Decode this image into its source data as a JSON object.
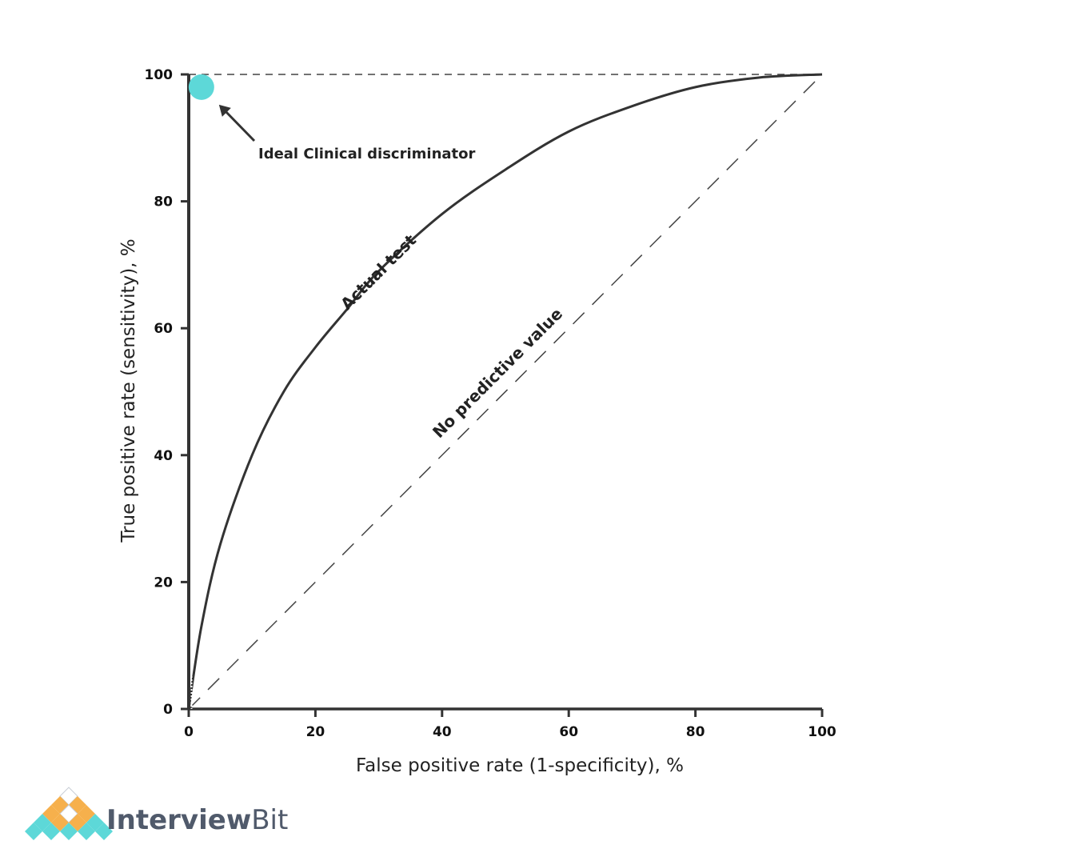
{
  "chart_data": {
    "type": "line",
    "xlabel": "False positive rate (1-specificity), %",
    "ylabel": "True positive rate (sensitivity), %",
    "xlim": [
      0,
      100
    ],
    "ylim": [
      0,
      100
    ],
    "x_ticks": [
      "0",
      "20",
      "40",
      "60",
      "80",
      "100"
    ],
    "y_ticks": [
      "0",
      "20",
      "40",
      "60",
      "80",
      "100"
    ],
    "grid": false,
    "series": [
      {
        "name": "Actual test",
        "style": "solid",
        "x": [
          0,
          2,
          5,
          10,
          15,
          20,
          25,
          30,
          40,
          50,
          60,
          70,
          80,
          90,
          100
        ],
        "y": [
          0,
          13,
          26,
          40,
          50,
          57,
          63,
          69,
          78,
          85,
          91,
          95,
          98,
          99.5,
          100
        ]
      },
      {
        "name": "No predictive value",
        "style": "dashed",
        "x": [
          0,
          100
        ],
        "y": [
          0,
          100
        ]
      }
    ],
    "annotations": [
      {
        "text": "Ideal Clinical discriminator",
        "point": {
          "x": 2,
          "y": 98
        }
      }
    ],
    "colors": {
      "line": "#333333",
      "point": "#5dd8d8"
    }
  },
  "brand": {
    "name_part1": "Interview",
    "name_part2": "Bit",
    "colors": {
      "text": "#505a6b",
      "teal": "#5dd8d8",
      "orange": "#f6b04c"
    }
  }
}
